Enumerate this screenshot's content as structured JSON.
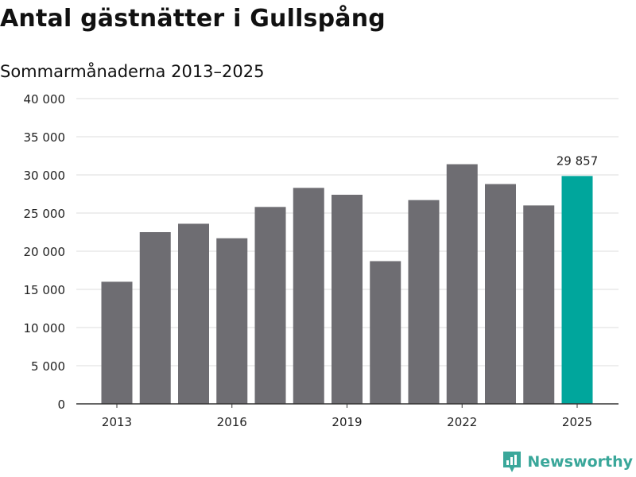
{
  "chart_data": {
    "type": "bar",
    "title": "Antal gästnätter i Gullspång",
    "subtitle": "Sommarmånaderna 2013–2025",
    "categories": [
      "2013",
      "2014",
      "2015",
      "2016",
      "2017",
      "2018",
      "2019",
      "2020",
      "2021",
      "2022",
      "2023",
      "2024",
      "2025"
    ],
    "x_tick_labels": [
      "2013",
      "2016",
      "2019",
      "2022",
      "2025"
    ],
    "values": [
      16000,
      22500,
      23600,
      21700,
      25800,
      28300,
      27400,
      18700,
      26700,
      31400,
      28800,
      26000,
      29857
    ],
    "ylim": [
      0,
      40000
    ],
    "y_ticks": [
      0,
      5000,
      10000,
      15000,
      20000,
      25000,
      30000,
      35000,
      40000
    ],
    "y_tick_labels": [
      "0",
      "5 000",
      "10 000",
      "15 000",
      "20 000",
      "25 000",
      "30 000",
      "35 000",
      "40 000"
    ],
    "grid": true,
    "highlight_index": 12,
    "highlight_label": "29 857",
    "bar_color": "#6e6d72",
    "highlight_color": "#00a69c"
  },
  "logo": {
    "text": "Newsworthy",
    "color": "#3aa79a"
  }
}
